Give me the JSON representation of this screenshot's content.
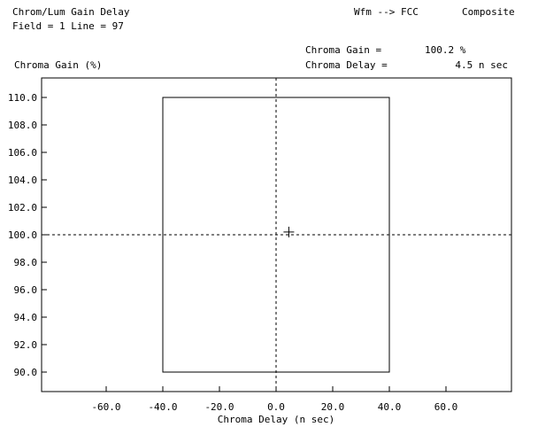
{
  "header": {
    "title": "Chrom/Lum Gain Delay",
    "field_line": "Field = 1 Line =  97",
    "mode": "Wfm --> FCC",
    "signal": "Composite"
  },
  "readouts": {
    "gain_label": "Chroma Gain  =",
    "gain_value": "100.2 %",
    "delay_label": "Chroma Delay =",
    "delay_value": "4.5 n sec"
  },
  "chart_data": {
    "type": "scatter",
    "title": "",
    "ylabel": "Chroma Gain (%)",
    "xlabel": "Chroma Delay (n sec)",
    "xlim": [
      -80,
      80
    ],
    "ylim": [
      89,
      115
    ],
    "x_ticks": [
      -60,
      -40,
      -20,
      0,
      20,
      40,
      60
    ],
    "x_tick_labels": [
      "-60.0",
      "-40.0",
      "-20.0",
      "0.0",
      "20.0",
      "40.0",
      "60.0"
    ],
    "y_ticks": [
      110,
      108,
      106,
      104,
      102,
      100,
      98,
      96,
      94,
      92,
      90
    ],
    "y_tick_labels": [
      "110.0",
      "108.0",
      "106.0",
      "104.0",
      "102.0",
      "100.0",
      "98.0",
      "96.0",
      "94.0",
      "92.0",
      "90.0"
    ],
    "limit_box": {
      "x": [
        -40,
        40
      ],
      "y": [
        90,
        110
      ]
    },
    "reference": {
      "x": 0,
      "y": 100
    },
    "points": [
      {
        "x": 4.5,
        "y": 100.2
      }
    ],
    "grid": false,
    "colors": {
      "background": "#ffffff",
      "foreground": "#000000"
    }
  }
}
